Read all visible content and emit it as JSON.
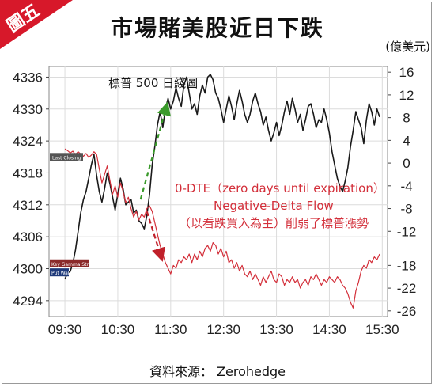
{
  "badge": {
    "label": "圖五",
    "color": "#d7182a"
  },
  "title": "市場賭美股近日下跌",
  "unit_label": "(億美元)",
  "source": "資料來源： Zerohedge",
  "colors": {
    "black_series": "#1a1a1a",
    "red_series": "#d32f3a",
    "arrow_green": "#3a9a2a",
    "arrow_red": "#c0202a",
    "grid": "#dcdcdc",
    "red_text": "#d32f3a"
  },
  "chart_data": {
    "type": "line",
    "title": "市場賭美股近日下跌",
    "x_tick_labels": [
      "09:30",
      "10:30",
      "11:30",
      "12:30",
      "13:30",
      "14:30",
      "15:30"
    ],
    "x_ticks_hours": [
      9.5,
      10.5,
      11.5,
      12.5,
      13.5,
      14.5,
      15.5
    ],
    "xlim": [
      9.2,
      15.6
    ],
    "left_axis": {
      "ticks": [
        4294,
        4300,
        4306,
        4312,
        4318,
        4324,
        4330,
        4336
      ],
      "ylim": [
        4291,
        4338
      ]
    },
    "right_axis": {
      "unit": "(億美元)",
      "ticks": [
        -26,
        -22,
        -18,
        -12,
        -8,
        -4,
        0,
        4,
        8,
        12,
        16
      ],
      "ylim": [
        -27,
        17
      ]
    },
    "grid": true,
    "series": [
      {
        "name": "標普 500 日綫圖",
        "axis": "left",
        "color": "#1a1a1a",
        "points": [
          [
            9.5,
            4298.0
          ],
          [
            9.55,
            4299.2
          ],
          [
            9.6,
            4299.5
          ],
          [
            9.65,
            4301.0
          ],
          [
            9.7,
            4303.5
          ],
          [
            9.75,
            4307.0
          ],
          [
            9.8,
            4310.5
          ],
          [
            9.85,
            4313.0
          ],
          [
            9.9,
            4314.5
          ],
          [
            9.95,
            4317.0
          ],
          [
            10.0,
            4319.5
          ],
          [
            10.05,
            4321.5
          ],
          [
            10.1,
            4317.5
          ],
          [
            10.15,
            4314.5
          ],
          [
            10.2,
            4312.5
          ],
          [
            10.25,
            4315.0
          ],
          [
            10.3,
            4318.0
          ],
          [
            10.35,
            4316.0
          ],
          [
            10.4,
            4313.5
          ],
          [
            10.45,
            4311.0
          ],
          [
            10.5,
            4314.0
          ],
          [
            10.55,
            4317.0
          ],
          [
            10.6,
            4315.0
          ],
          [
            10.65,
            4312.0
          ],
          [
            10.7,
            4312.5
          ],
          [
            10.75,
            4313.0
          ],
          [
            10.8,
            4310.5
          ],
          [
            10.85,
            4311.0
          ],
          [
            10.9,
            4309.0
          ],
          [
            10.95,
            4308.5
          ],
          [
            11.0,
            4307.5
          ],
          [
            11.05,
            4310.0
          ],
          [
            11.1,
            4314.0
          ],
          [
            11.15,
            4319.5
          ],
          [
            11.2,
            4323.0
          ],
          [
            11.25,
            4327.0
          ],
          [
            11.3,
            4329.5
          ],
          [
            11.35,
            4326.5
          ],
          [
            11.4,
            4330.0
          ],
          [
            11.45,
            4332.0
          ],
          [
            11.5,
            4330.0
          ],
          [
            11.55,
            4331.5
          ],
          [
            11.6,
            4334.0
          ],
          [
            11.65,
            4332.0
          ],
          [
            11.7,
            4330.5
          ],
          [
            11.75,
            4334.5
          ],
          [
            11.8,
            4336.0
          ],
          [
            11.85,
            4333.0
          ],
          [
            11.9,
            4330.0
          ],
          [
            11.95,
            4331.0
          ],
          [
            12.0,
            4329.0
          ],
          [
            12.05,
            4332.5
          ],
          [
            12.1,
            4334.5
          ],
          [
            12.15,
            4333.0
          ],
          [
            12.2,
            4336.0
          ],
          [
            12.25,
            4336.5
          ],
          [
            12.3,
            4335.5
          ],
          [
            12.35,
            4333.0
          ],
          [
            12.4,
            4332.0
          ],
          [
            12.45,
            4330.0
          ],
          [
            12.5,
            4327.5
          ],
          [
            12.55,
            4330.0
          ],
          [
            12.6,
            4332.5
          ],
          [
            12.65,
            4330.5
          ],
          [
            12.7,
            4328.0
          ],
          [
            12.75,
            4331.0
          ],
          [
            12.8,
            4333.5
          ],
          [
            12.85,
            4331.5
          ],
          [
            12.9,
            4329.0
          ],
          [
            12.95,
            4327.5
          ],
          [
            13.0,
            4329.0
          ],
          [
            13.05,
            4331.5
          ],
          [
            13.1,
            4333.0
          ],
          [
            13.15,
            4331.0
          ],
          [
            13.2,
            4329.5
          ],
          [
            13.25,
            4327.0
          ],
          [
            13.3,
            4328.5
          ],
          [
            13.35,
            4326.0
          ],
          [
            13.4,
            4324.0
          ],
          [
            13.45,
            4325.5
          ],
          [
            13.5,
            4327.5
          ],
          [
            13.55,
            4325.0
          ],
          [
            13.6,
            4327.0
          ],
          [
            13.65,
            4329.5
          ],
          [
            13.7,
            4331.5
          ],
          [
            13.75,
            4329.0
          ],
          [
            13.8,
            4332.0
          ],
          [
            13.85,
            4330.0
          ],
          [
            13.9,
            4327.5
          ],
          [
            13.95,
            4329.0
          ],
          [
            14.0,
            4326.0
          ],
          [
            14.05,
            4328.0
          ],
          [
            14.1,
            4330.5
          ],
          [
            14.15,
            4331.0
          ],
          [
            14.2,
            4329.0
          ],
          [
            14.25,
            4326.5
          ],
          [
            14.3,
            4328.0
          ],
          [
            14.35,
            4327.5
          ],
          [
            14.4,
            4330.0
          ],
          [
            14.45,
            4328.0
          ],
          [
            14.5,
            4325.5
          ],
          [
            14.55,
            4322.0
          ],
          [
            14.6,
            4319.5
          ],
          [
            14.65,
            4317.0
          ],
          [
            14.7,
            4315.5
          ],
          [
            14.75,
            4314.5
          ],
          [
            14.8,
            4316.5
          ],
          [
            14.85,
            4319.0
          ],
          [
            14.9,
            4323.0
          ],
          [
            14.95,
            4326.0
          ],
          [
            15.0,
            4329.5
          ],
          [
            15.05,
            4328.0
          ],
          [
            15.1,
            4326.5
          ],
          [
            15.15,
            4323.5
          ],
          [
            15.2,
            4328.0
          ],
          [
            15.25,
            4331.0
          ],
          [
            15.3,
            4329.5
          ],
          [
            15.35,
            4327.0
          ],
          [
            15.4,
            4330.0
          ],
          [
            15.45,
            4328.5
          ]
        ]
      },
      {
        "name": "0-DTE Negative-Delta Flow",
        "axis": "right",
        "color": "#d32f3a",
        "points": [
          [
            9.5,
            2.5
          ],
          [
            9.55,
            2.2
          ],
          [
            9.6,
            1.8
          ],
          [
            9.65,
            2.1
          ],
          [
            9.7,
            1.5
          ],
          [
            9.75,
            2.0
          ],
          [
            9.8,
            1.6
          ],
          [
            9.85,
            1.2
          ],
          [
            9.9,
            1.7
          ],
          [
            9.95,
            1.0
          ],
          [
            10.0,
            1.4
          ],
          [
            10.05,
            2.0
          ],
          [
            10.1,
            1.5
          ],
          [
            10.15,
            -1.0
          ],
          [
            10.2,
            -3.5
          ],
          [
            10.25,
            -2.0
          ],
          [
            10.3,
            -0.5
          ],
          [
            10.35,
            -3.0
          ],
          [
            10.4,
            -5.5
          ],
          [
            10.45,
            -4.0
          ],
          [
            10.5,
            -6.0
          ],
          [
            10.55,
            -3.5
          ],
          [
            10.6,
            -5.0
          ],
          [
            10.65,
            -7.0
          ],
          [
            10.7,
            -6.0
          ],
          [
            10.75,
            -8.0
          ],
          [
            10.8,
            -9.5
          ],
          [
            10.85,
            -8.5
          ],
          [
            10.9,
            -10.0
          ],
          [
            10.95,
            -9.0
          ],
          [
            11.0,
            -9.5
          ],
          [
            11.05,
            -8.0
          ],
          [
            11.1,
            -7.5
          ],
          [
            11.15,
            -8.5
          ],
          [
            11.2,
            -10.5
          ],
          [
            11.25,
            -12.5
          ],
          [
            11.3,
            -14.5
          ],
          [
            11.35,
            -16.0
          ],
          [
            11.4,
            -17.5
          ],
          [
            11.45,
            -18.5
          ],
          [
            11.5,
            -19.5
          ],
          [
            11.55,
            -18.0
          ],
          [
            11.6,
            -18.5
          ],
          [
            11.65,
            -17.0
          ],
          [
            11.7,
            -17.5
          ],
          [
            11.75,
            -16.5
          ],
          [
            11.8,
            -17.0
          ],
          [
            11.85,
            -16.0
          ],
          [
            11.9,
            -17.5
          ],
          [
            11.95,
            -16.0
          ],
          [
            12.0,
            -17.0
          ],
          [
            12.05,
            -15.5
          ],
          [
            12.1,
            -16.5
          ],
          [
            12.15,
            -15.0
          ],
          [
            12.2,
            -14.5
          ],
          [
            12.25,
            -15.5
          ],
          [
            12.3,
            -14.0
          ],
          [
            12.35,
            -14.5
          ],
          [
            12.4,
            -16.0
          ],
          [
            12.45,
            -15.0
          ],
          [
            12.5,
            -16.5
          ],
          [
            12.55,
            -15.5
          ],
          [
            12.6,
            -17.5
          ],
          [
            12.65,
            -17.0
          ],
          [
            12.7,
            -18.5
          ],
          [
            12.75,
            -17.5
          ],
          [
            12.8,
            -19.0
          ],
          [
            12.85,
            -18.0
          ],
          [
            12.9,
            -19.5
          ],
          [
            12.95,
            -20.0
          ],
          [
            13.0,
            -19.0
          ],
          [
            13.05,
            -20.5
          ],
          [
            13.1,
            -19.5
          ],
          [
            13.15,
            -20.5
          ],
          [
            13.2,
            -21.5
          ],
          [
            13.25,
            -20.0
          ],
          [
            13.3,
            -21.0
          ],
          [
            13.35,
            -20.0
          ],
          [
            13.4,
            -19.0
          ],
          [
            13.45,
            -20.5
          ],
          [
            13.5,
            -21.0
          ],
          [
            13.55,
            -19.5
          ],
          [
            13.6,
            -20.0
          ],
          [
            13.65,
            -21.5
          ],
          [
            13.7,
            -20.5
          ],
          [
            13.75,
            -21.0
          ],
          [
            13.8,
            -20.0
          ],
          [
            13.85,
            -21.0
          ],
          [
            13.9,
            -20.5
          ],
          [
            13.95,
            -22.0
          ],
          [
            14.0,
            -21.0
          ],
          [
            14.05,
            -20.5
          ],
          [
            14.1,
            -21.5
          ],
          [
            14.15,
            -20.0
          ],
          [
            14.2,
            -20.5
          ],
          [
            14.25,
            -19.5
          ],
          [
            14.3,
            -20.5
          ],
          [
            14.35,
            -21.5
          ],
          [
            14.4,
            -20.5
          ],
          [
            14.45,
            -21.0
          ],
          [
            14.5,
            -20.0
          ],
          [
            14.55,
            -20.5
          ],
          [
            14.6,
            -21.0
          ],
          [
            14.65,
            -20.0
          ],
          [
            14.7,
            -20.5
          ],
          [
            14.75,
            -21.5
          ],
          [
            14.8,
            -22.0
          ],
          [
            14.85,
            -23.0
          ],
          [
            14.9,
            -24.5
          ],
          [
            14.95,
            -25.5
          ],
          [
            15.0,
            -22.5
          ],
          [
            15.05,
            -21.0
          ],
          [
            15.1,
            -19.0
          ],
          [
            15.15,
            -18.0
          ],
          [
            15.2,
            -18.5
          ],
          [
            15.25,
            -17.0
          ],
          [
            15.3,
            -17.5
          ],
          [
            15.35,
            -16.5
          ],
          [
            15.4,
            -17.0
          ],
          [
            15.45,
            -16.0
          ]
        ]
      }
    ],
    "annotations": {
      "black_label": "標普 500 日綫圖",
      "red_line1": "0-DTE（zero days until expiration）",
      "red_line2": "Negative-Delta Flow",
      "red_line3": "（以看跌買入為主）削弱了標普漲勢",
      "small_label_last_closing": "Last Closing",
      "small_label_key_gamma": "Key Gamma Strike",
      "small_label_put_wall": "Put Wall"
    }
  }
}
